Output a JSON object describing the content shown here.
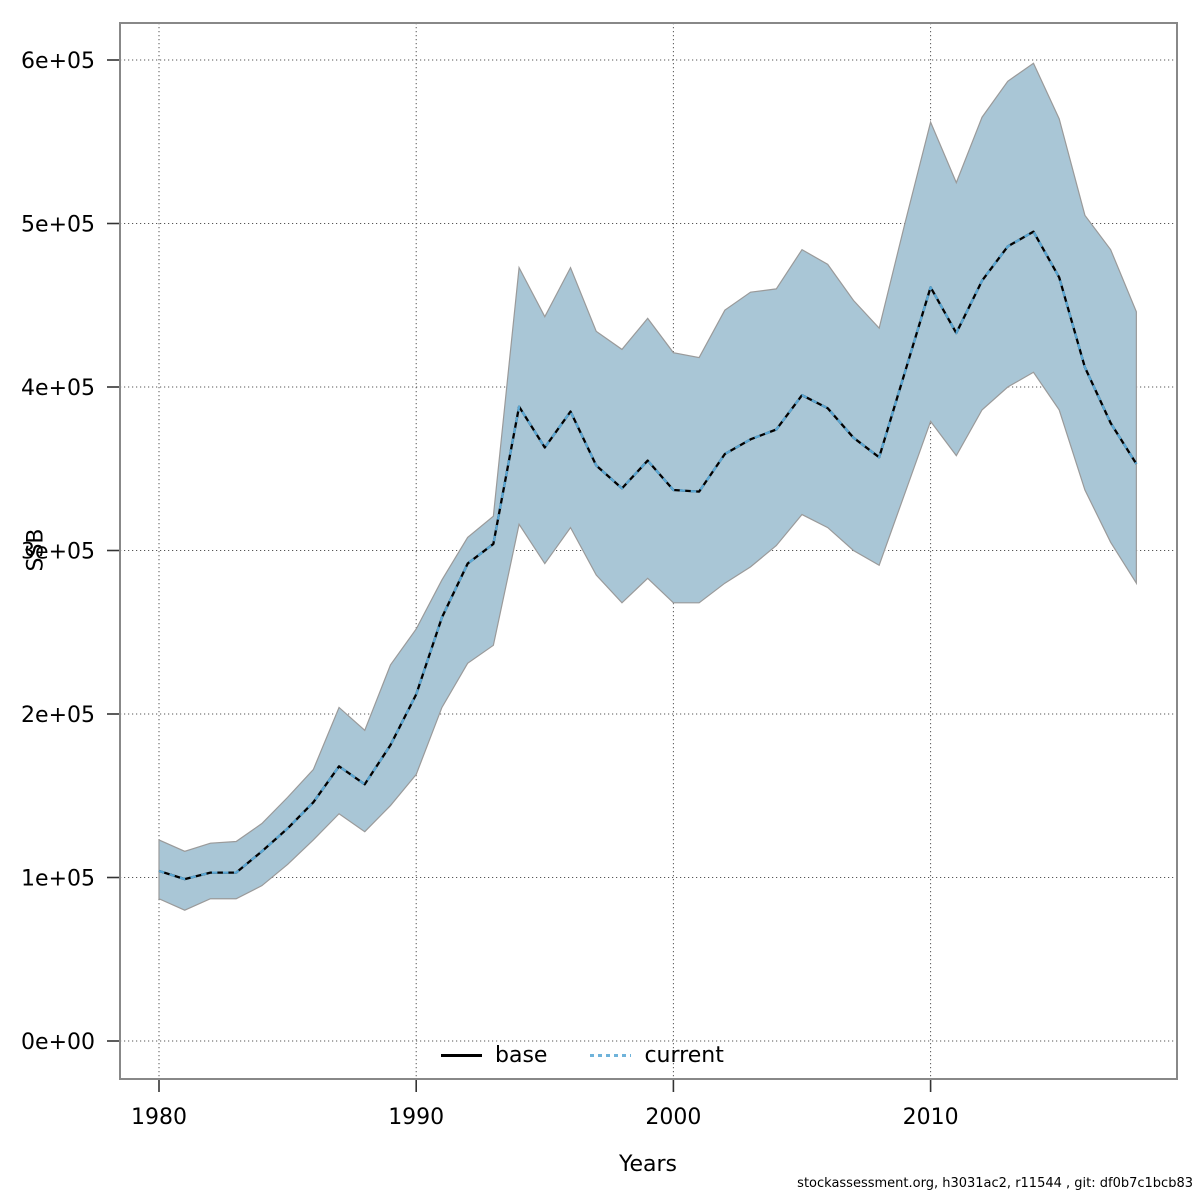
{
  "chart_data": {
    "type": "line",
    "title": "",
    "xlabel": "Years",
    "ylabel": "SSB",
    "x_ticks": [
      1980,
      1990,
      2000,
      2010
    ],
    "y_ticks": [
      {
        "value": 0,
        "label": "0e+00"
      },
      {
        "value": 100000,
        "label": "1e+05"
      },
      {
        "value": 200000,
        "label": "2e+05"
      },
      {
        "value": 300000,
        "label": "3e+05"
      },
      {
        "value": 400000,
        "label": "4e+05"
      },
      {
        "value": 500000,
        "label": "5e+05"
      },
      {
        "value": 600000,
        "label": "6e+05"
      }
    ],
    "xlim": [
      1978.5,
      2019.6
    ],
    "ylim": [
      -23000,
      623000
    ],
    "grid": true,
    "legend_position": "bottom-center-inside",
    "years": [
      1980,
      1981,
      1982,
      1983,
      1984,
      1985,
      1986,
      1987,
      1988,
      1989,
      1990,
      1991,
      1992,
      1993,
      1994,
      1995,
      1996,
      1997,
      1998,
      1999,
      2000,
      2001,
      2002,
      2003,
      2004,
      2005,
      2006,
      2007,
      2008,
      2009,
      2010,
      2011,
      2012,
      2013,
      2014,
      2015,
      2016,
      2017,
      2018
    ],
    "series": [
      {
        "name": "base",
        "style": "solid",
        "color": "#000000",
        "values": [
          104000,
          99000,
          103000,
          103000,
          116000,
          130000,
          146000,
          168000,
          157000,
          181000,
          212000,
          259000,
          292000,
          304000,
          388000,
          363000,
          385000,
          352000,
          338000,
          355000,
          337000,
          336000,
          359000,
          368000,
          374000,
          395000,
          387000,
          369000,
          357000,
          409000,
          461000,
          433000,
          465000,
          486000,
          495000,
          467000,
          412000,
          378000,
          353000
        ]
      },
      {
        "name": "current",
        "style": "dotted",
        "color": "#5aa7d4",
        "values": [
          104000,
          99000,
          103000,
          103000,
          116000,
          130000,
          146000,
          168000,
          157000,
          181000,
          212000,
          259000,
          292000,
          304000,
          388000,
          363000,
          385000,
          352000,
          338000,
          355000,
          337000,
          336000,
          359000,
          368000,
          374000,
          395000,
          387000,
          369000,
          357000,
          409000,
          461000,
          433000,
          465000,
          486000,
          495000,
          467000,
          412000,
          378000,
          353000
        ]
      }
    ],
    "band": {
      "name": "confidence-band",
      "fill": "#a9c6d6",
      "edge": "#9a9a9a",
      "lower": [
        87000,
        80000,
        87000,
        87000,
        95000,
        108000,
        123000,
        139000,
        128000,
        144000,
        163000,
        204000,
        231000,
        242000,
        316000,
        292000,
        314000,
        285000,
        268000,
        283000,
        268000,
        268000,
        280000,
        290000,
        303000,
        322000,
        314000,
        300000,
        291000,
        335000,
        379000,
        358000,
        386000,
        400000,
        409000,
        386000,
        337000,
        305000,
        280000
      ],
      "upper": [
        123000,
        116000,
        121000,
        122000,
        133000,
        149000,
        166000,
        204000,
        190000,
        230000,
        252000,
        282000,
        308000,
        321000,
        473000,
        443000,
        473000,
        434000,
        423000,
        442000,
        421000,
        418000,
        447000,
        458000,
        460000,
        484000,
        475000,
        453000,
        436000,
        500000,
        562000,
        525000,
        565000,
        587000,
        598000,
        564000,
        505000,
        484000,
        446000
      ]
    }
  },
  "legend": {
    "items": [
      {
        "label": "base"
      },
      {
        "label": "current"
      }
    ]
  },
  "footer": {
    "credit": "stockassessment.org, h3031ac2, r11544 , git: df0b7c1bcb83"
  },
  "colors": {
    "band": "#a9c6d6",
    "current_line": "#5aa7d4",
    "base_line": "#000000",
    "grid": "#555555",
    "border": "#888888",
    "tick": "#333333",
    "text": "#000000",
    "background": "#ffffff"
  }
}
